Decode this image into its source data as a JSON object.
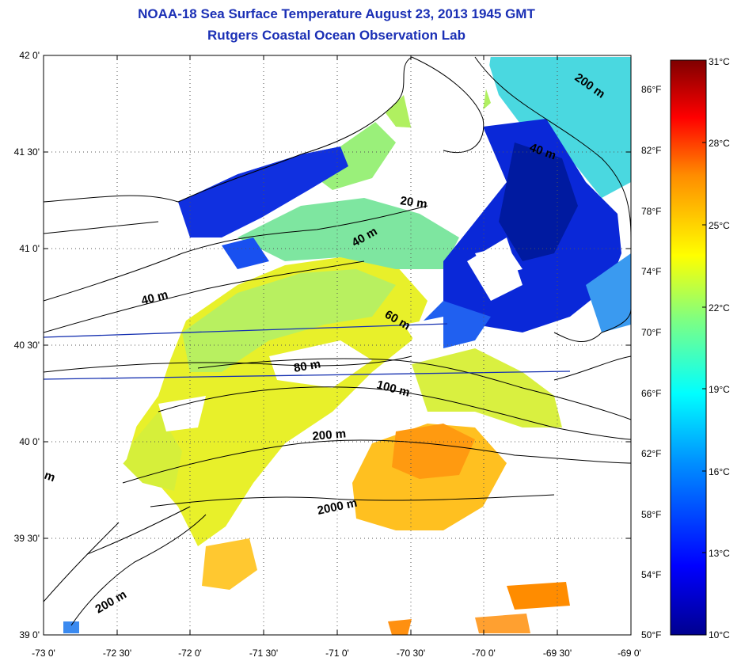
{
  "header": {
    "title": "NOAA-18 Sea Surface Temperature August 23, 2013 1945 GMT",
    "subtitle": "Rutgers Coastal Ocean Observation Lab"
  },
  "map": {
    "lat_ticks": [
      "42 0'",
      "41 30'",
      "41 0'",
      "40 30'",
      "40 0'",
      "39 30'",
      "39 0'"
    ],
    "lon_ticks": [
      "-73 0'",
      "-72 30'",
      "-72 0'",
      "-71 30'",
      "-71 0'",
      "-70 30'",
      "-70 0'",
      "-69 30'",
      "-69 0'"
    ],
    "fahrenheit_ticks": [
      "86°F",
      "82°F",
      "78°F",
      "74°F",
      "70°F",
      "66°F",
      "62°F",
      "58°F",
      "54°F",
      "50°F"
    ],
    "depth_labels": [
      "200 m",
      "40 m",
      "20 m",
      "40 m",
      "40 m",
      "60 m",
      "80 m",
      "100 m",
      "200 m",
      "2000 m",
      "200 m",
      "m"
    ]
  },
  "colorbar": {
    "celsius_ticks": [
      "31°C",
      "28°C",
      "25°C",
      "22°C",
      "19°C",
      "16°C",
      "13°C",
      "10°C"
    ],
    "colors": [
      "#7f0000",
      "#ff0000",
      "#ff8c00",
      "#ffff00",
      "#80ff80",
      "#00ffff",
      "#0080ff",
      "#0000c8",
      "#00008f"
    ]
  }
}
